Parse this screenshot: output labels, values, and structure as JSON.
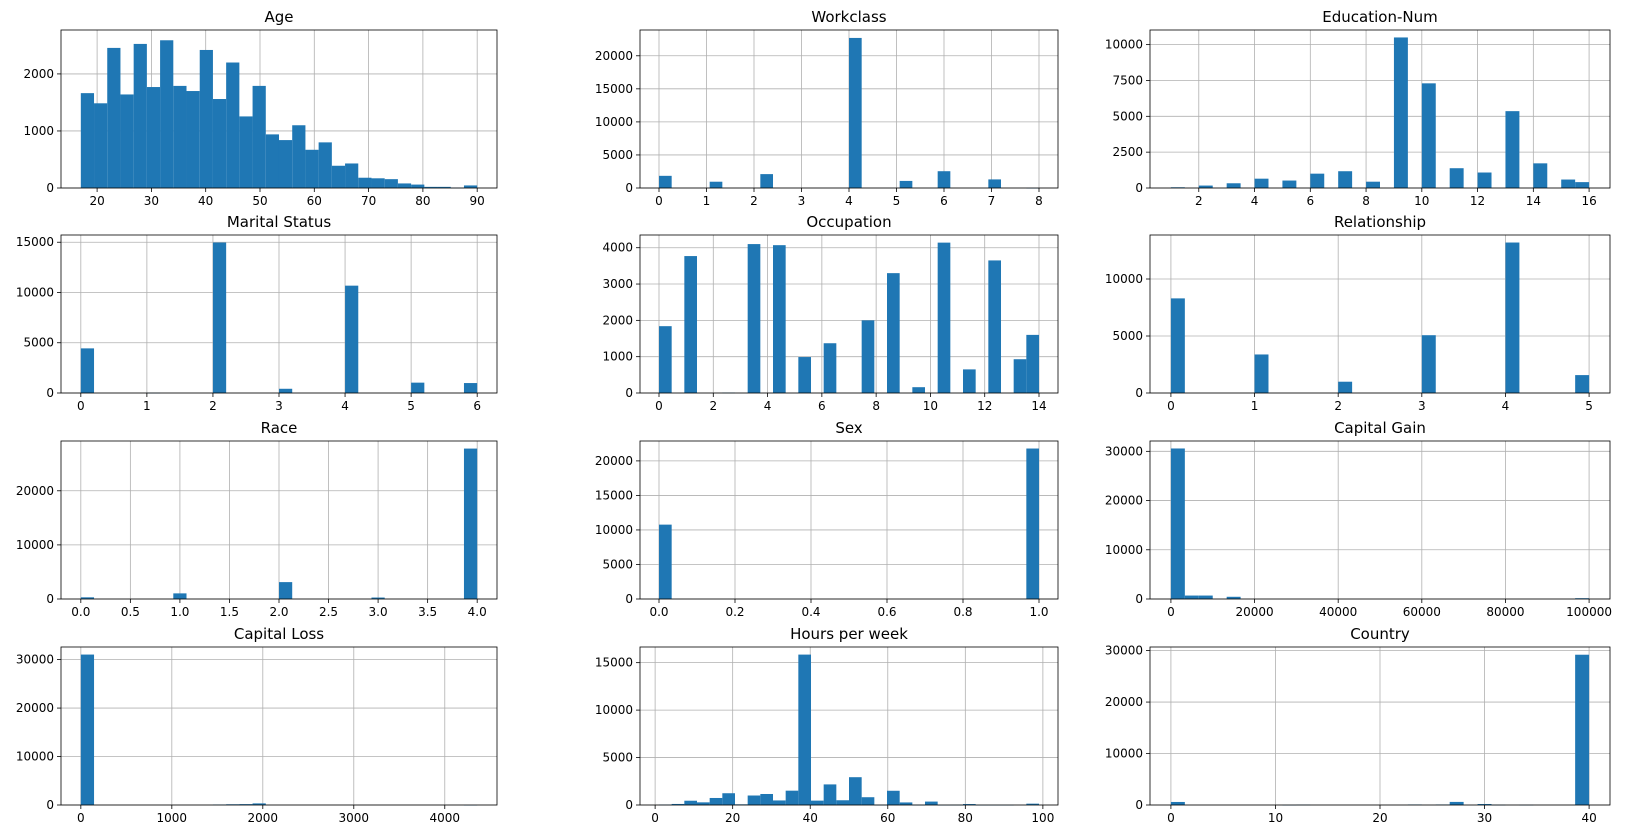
{
  "chart_data": [
    {
      "type": "bar",
      "title": "Age",
      "bin_start": 17,
      "bin_width": 2.4333,
      "values": [
        1663,
        1485,
        2456,
        1640,
        2526,
        1770,
        2590,
        1790,
        1700,
        2420,
        1560,
        2200,
        1255,
        1790,
        940,
        840,
        1100,
        670,
        800,
        390,
        430,
        180,
        170,
        155,
        80,
        60,
        20,
        20,
        5,
        45
      ],
      "xlim": [
        13.35,
        93.65
      ],
      "ylim": [
        0,
        2770
      ],
      "xticks": [
        20,
        30,
        40,
        50,
        60,
        70,
        80,
        90
      ],
      "yticks": [
        0,
        1000,
        2000
      ],
      "xtick_labels": [
        "20",
        "30",
        "40",
        "50",
        "60",
        "70",
        "80",
        "90"
      ],
      "ytick_labels": [
        "0",
        "1000",
        "2000"
      ],
      "grid": true,
      "color": "#1f77b4"
    },
    {
      "type": "bar",
      "title": "Workclass",
      "bin_start": 0,
      "bin_width": 0.26667,
      "values": [
        1840,
        0,
        0,
        0,
        950,
        0,
        0,
        0,
        2100,
        0,
        0,
        0,
        0,
        0,
        0,
        22700,
        0,
        0,
        0,
        1070,
        0,
        0,
        2540,
        0,
        0,
        0,
        1300,
        0,
        0,
        10
      ],
      "xlim": [
        -0.4,
        8.4
      ],
      "ylim": [
        0,
        23900
      ],
      "xticks": [
        0,
        1,
        2,
        3,
        4,
        5,
        6,
        7,
        8
      ],
      "yticks": [
        0,
        5000,
        10000,
        15000,
        20000
      ],
      "xtick_labels": [
        "0",
        "1",
        "2",
        "3",
        "4",
        "5",
        "6",
        "7",
        "8"
      ],
      "ytick_labels": [
        "0",
        "5000",
        "10000",
        "15000",
        "20000"
      ],
      "grid": true,
      "color": "#1f77b4"
    },
    {
      "type": "bar",
      "title": "Education-Num",
      "bin_start": 1,
      "bin_width": 0.5,
      "values": [
        50,
        0,
        170,
        0,
        330,
        0,
        650,
        0,
        520,
        0,
        1000,
        0,
        1170,
        0,
        440,
        0,
        10500,
        0,
        7300,
        0,
        1380,
        0,
        1080,
        0,
        5360,
        0,
        1720,
        0,
        590,
        410
      ],
      "xlim": [
        0.25,
        16.75
      ],
      "ylim": [
        0,
        11020
      ],
      "xticks": [
        2,
        4,
        6,
        8,
        10,
        12,
        14,
        16
      ],
      "yticks": [
        0,
        2500,
        5000,
        7500,
        10000
      ],
      "xtick_labels": [
        "2",
        "4",
        "6",
        "8",
        "10",
        "12",
        "14",
        "16"
      ],
      "ytick_labels": [
        "0",
        "2500",
        "5000",
        "7500",
        "10000"
      ],
      "grid": true,
      "color": "#1f77b4"
    },
    {
      "type": "bar",
      "title": "Marital Status",
      "bin_start": 0,
      "bin_width": 0.2,
      "values": [
        4440,
        0,
        0,
        0,
        0,
        20,
        0,
        0,
        0,
        0,
        14970,
        0,
        0,
        0,
        0,
        420,
        0,
        0,
        0,
        0,
        10680,
        0,
        0,
        0,
        0,
        1030,
        0,
        0,
        0,
        990
      ],
      "xlim": [
        -0.3,
        6.3
      ],
      "ylim": [
        0,
        15720
      ],
      "xticks": [
        0,
        1,
        2,
        3,
        4,
        5,
        6
      ],
      "yticks": [
        0,
        5000,
        10000,
        15000
      ],
      "xtick_labels": [
        "0",
        "1",
        "2",
        "3",
        "4",
        "5",
        "6"
      ],
      "ytick_labels": [
        "0",
        "5000",
        "10000",
        "15000"
      ],
      "grid": true,
      "color": "#1f77b4"
    },
    {
      "type": "bar",
      "title": "Occupation",
      "bin_start": 0,
      "bin_width": 0.46667,
      "values": [
        1840,
        0,
        3770,
        0,
        0,
        10,
        0,
        4100,
        0,
        4070,
        0,
        990,
        0,
        1370,
        0,
        0,
        2000,
        0,
        3300,
        0,
        160,
        0,
        4140,
        0,
        650,
        0,
        3650,
        0,
        930,
        1600
      ],
      "xlim": [
        -0.7,
        14.7
      ],
      "ylim": [
        0,
        4350
      ],
      "xticks": [
        0,
        2,
        4,
        6,
        8,
        10,
        12,
        14
      ],
      "yticks": [
        0,
        1000,
        2000,
        3000,
        4000
      ],
      "xtick_labels": [
        "0",
        "2",
        "4",
        "6",
        "8",
        "10",
        "12",
        "14"
      ],
      "ytick_labels": [
        "0",
        "1000",
        "2000",
        "3000",
        "4000"
      ],
      "grid": true,
      "color": "#1f77b4"
    },
    {
      "type": "bar",
      "title": "Relationship",
      "bin_start": 0,
      "bin_width": 0.16667,
      "values": [
        8300,
        0,
        0,
        0,
        0,
        0,
        3380,
        0,
        0,
        0,
        0,
        0,
        990,
        0,
        0,
        0,
        0,
        0,
        5070,
        0,
        0,
        0,
        0,
        0,
        13200,
        0,
        0,
        0,
        0,
        1570
      ],
      "xlim": [
        -0.25,
        5.25
      ],
      "ylim": [
        0,
        13860
      ],
      "xticks": [
        0,
        1,
        2,
        3,
        4,
        5
      ],
      "yticks": [
        0,
        5000,
        10000
      ],
      "xtick_labels": [
        "0",
        "1",
        "2",
        "3",
        "4",
        "5"
      ],
      "ytick_labels": [
        "0",
        "5000",
        "10000"
      ],
      "grid": true,
      "color": "#1f77b4"
    },
    {
      "type": "bar",
      "title": "Race",
      "bin_start": 0,
      "bin_width": 0.13333,
      "values": [
        310,
        0,
        0,
        0,
        0,
        0,
        0,
        1040,
        0,
        0,
        0,
        0,
        0,
        0,
        0,
        3120,
        0,
        0,
        0,
        0,
        0,
        0,
        270,
        0,
        0,
        0,
        0,
        0,
        0,
        27800
      ],
      "xlim": [
        -0.2,
        4.2
      ],
      "ylim": [
        0,
        29200
      ],
      "xticks": [
        0,
        0.5,
        1,
        1.5,
        2,
        2.5,
        3,
        3.5,
        4
      ],
      "yticks": [
        0,
        10000,
        20000
      ],
      "xtick_labels": [
        "0.0",
        "0.5",
        "1.0",
        "1.5",
        "2.0",
        "2.5",
        "3.0",
        "3.5",
        "4.0"
      ],
      "ytick_labels": [
        "0",
        "10000",
        "20000"
      ],
      "grid": true,
      "color": "#1f77b4"
    },
    {
      "type": "bar",
      "title": "Sex",
      "bin_start": 0,
      "bin_width": 0.033333,
      "values": [
        10770,
        0,
        0,
        0,
        0,
        0,
        0,
        0,
        0,
        0,
        0,
        0,
        0,
        0,
        0,
        0,
        0,
        0,
        0,
        0,
        0,
        0,
        0,
        0,
        0,
        0,
        0,
        0,
        0,
        21790
      ],
      "xlim": [
        -0.05,
        1.05
      ],
      "ylim": [
        0,
        22880
      ],
      "xticks": [
        0,
        0.2,
        0.4,
        0.6,
        0.8,
        1
      ],
      "yticks": [
        0,
        5000,
        10000,
        15000,
        20000
      ],
      "xtick_labels": [
        "0.0",
        "0.2",
        "0.4",
        "0.6",
        "0.8",
        "1.0"
      ],
      "ytick_labels": [
        "0",
        "5000",
        "10000",
        "15000",
        "20000"
      ],
      "grid": true,
      "color": "#1f77b4"
    },
    {
      "type": "bar",
      "title": "Capital Gain",
      "bin_start": 0,
      "bin_width": 3333.3,
      "values": [
        30580,
        700,
        700,
        0,
        450,
        0,
        0,
        0,
        0,
        0,
        0,
        0,
        0,
        0,
        0,
        0,
        0,
        0,
        0,
        0,
        0,
        0,
        0,
        0,
        0,
        0,
        0,
        0,
        0,
        160
      ],
      "xlim": [
        -5000,
        105000
      ],
      "ylim": [
        0,
        32100
      ],
      "xticks": [
        0,
        20000,
        40000,
        60000,
        80000,
        100000
      ],
      "yticks": [
        0,
        10000,
        20000,
        30000
      ],
      "xtick_labels": [
        "0",
        "20000",
        "40000",
        "60000",
        "80000",
        "100000"
      ],
      "ytick_labels": [
        "0",
        "10000",
        "20000",
        "30000"
      ],
      "grid": true,
      "color": "#1f77b4"
    },
    {
      "type": "bar",
      "title": "Capital Loss",
      "bin_start": 0,
      "bin_width": 145.2,
      "values": [
        31040,
        0,
        0,
        0,
        0,
        0,
        0,
        0,
        0,
        0,
        100,
        150,
        180,
        330,
        0,
        0,
        0,
        0,
        0,
        0,
        0,
        0,
        0,
        0,
        0,
        0,
        0,
        0,
        0,
        10
      ],
      "xlim": [
        -218,
        4574
      ],
      "ylim": [
        0,
        32600
      ],
      "xticks": [
        0,
        1000,
        2000,
        3000,
        4000
      ],
      "yticks": [
        0,
        10000,
        20000,
        30000
      ],
      "xtick_labels": [
        "0",
        "1000",
        "2000",
        "3000",
        "4000"
      ],
      "ytick_labels": [
        "0",
        "10000",
        "20000",
        "30000"
      ],
      "grid": true,
      "color": "#1f77b4"
    },
    {
      "type": "bar",
      "title": "Hours per week",
      "bin_start": 1,
      "bin_width": 3.2667,
      "values": [
        40,
        110,
        450,
        280,
        740,
        1240,
        70,
        1000,
        1160,
        480,
        1510,
        15850,
        460,
        2170,
        500,
        2930,
        820,
        20,
        1500,
        270,
        20,
        360,
        10,
        20,
        100,
        10,
        10,
        10,
        0,
        140
      ],
      "xlim": [
        -3.9,
        103.9
      ],
      "ylim": [
        0,
        16650
      ],
      "xticks": [
        0,
        20,
        40,
        60,
        80,
        100
      ],
      "yticks": [
        0,
        5000,
        10000,
        15000
      ],
      "xtick_labels": [
        "0",
        "20",
        "40",
        "60",
        "80",
        "100"
      ],
      "ytick_labels": [
        "0",
        "5000",
        "10000",
        "15000"
      ],
      "grid": true,
      "color": "#1f77b4"
    },
    {
      "type": "bar",
      "title": "Country",
      "bin_start": 0,
      "bin_width": 1.3333,
      "values": [
        590,
        0,
        0,
        0,
        0,
        0,
        0,
        0,
        20,
        60,
        0,
        0,
        0,
        0,
        0,
        0,
        0,
        100,
        0,
        100,
        600,
        0,
        190,
        40,
        0,
        30,
        0,
        0,
        0,
        29200
      ],
      "xlim": [
        -2,
        42
      ],
      "ylim": [
        0,
        30700
      ],
      "xticks": [
        0,
        10,
        20,
        30,
        40
      ],
      "yticks": [
        0,
        10000,
        20000,
        30000
      ],
      "xtick_labels": [
        "0",
        "10",
        "20",
        "30",
        "40"
      ],
      "ytick_labels": [
        "0",
        "10000",
        "20000",
        "30000"
      ],
      "grid": true,
      "color": "#1f77b4"
    }
  ]
}
